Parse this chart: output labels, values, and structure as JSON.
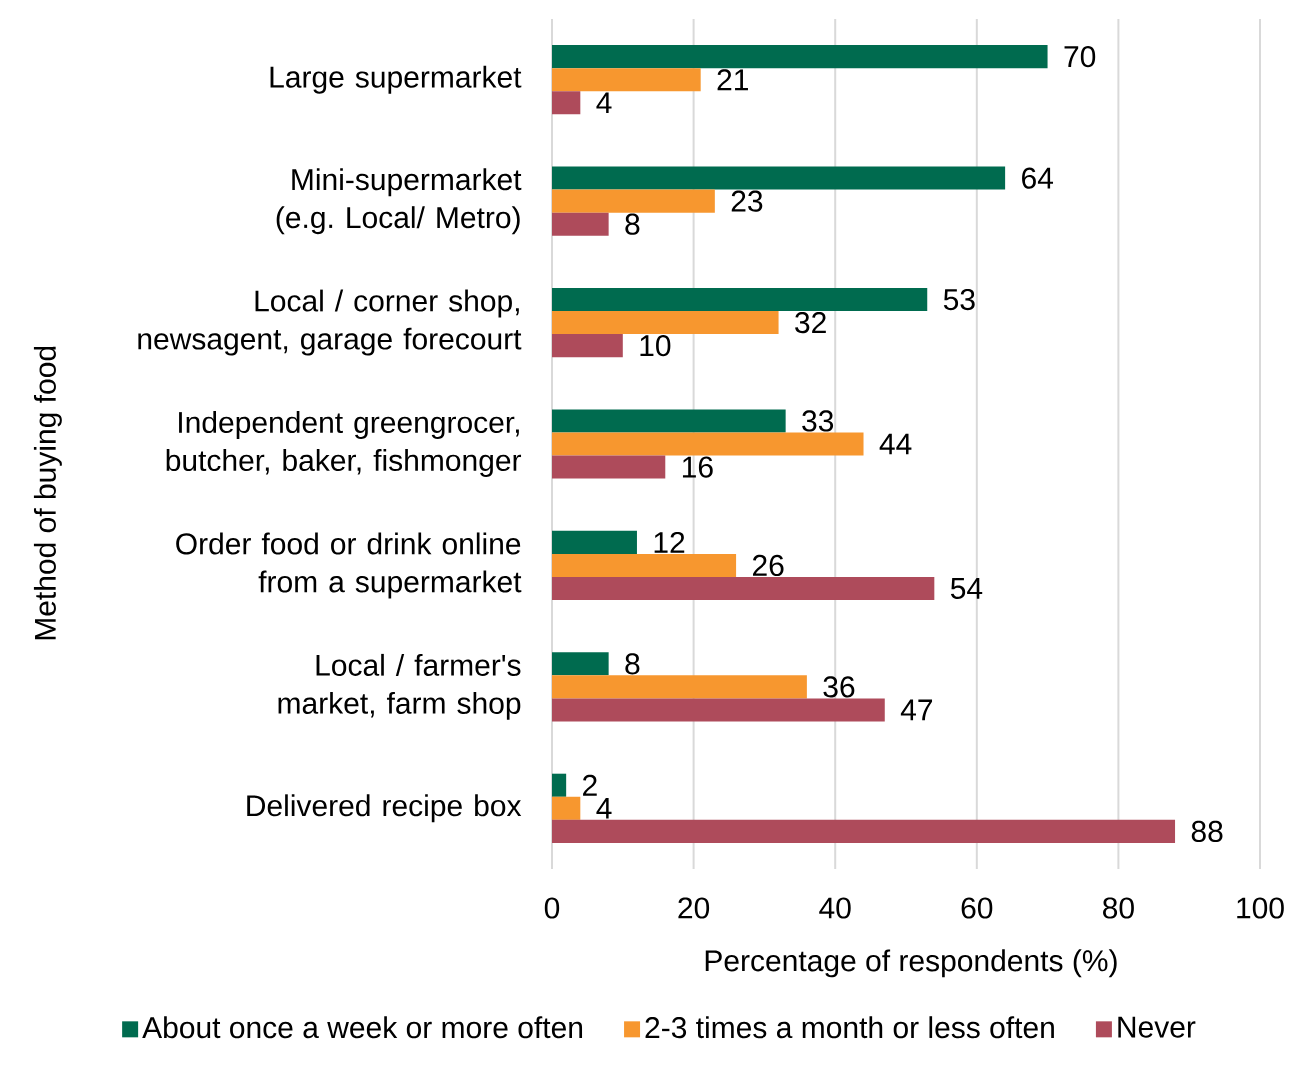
{
  "chart_data": {
    "type": "bar",
    "orientation": "horizontal",
    "xlabel": "Percentage of respondents (%)",
    "ylabel": "Method of buying food",
    "categories": [
      "Large supermarket",
      "Mini-supermarket (e.g. Local/ Metro)",
      "Local / corner shop, newsagent, garage forecourt",
      "Independent greengrocer, butcher, baker, fishmonger",
      "Order food or drink online from a supermarket",
      "Local / farmer's market, farm shop",
      "Delivered recipe box"
    ],
    "series": [
      {
        "name": "About once a week or more often",
        "color": "#006b4f",
        "values": [
          70,
          64,
          53,
          33,
          12,
          8,
          2
        ]
      },
      {
        "name": "2-3 times a month or less often",
        "color": "#f7972f",
        "values": [
          21,
          23,
          32,
          44,
          26,
          36,
          4
        ]
      },
      {
        "name": "Never",
        "color": "#ae4b5b",
        "values": [
          4,
          8,
          10,
          16,
          54,
          47,
          88
        ]
      }
    ],
    "xlim": [
      0,
      100
    ],
    "xticks": [
      0,
      20,
      40,
      60,
      80,
      100
    ],
    "grid": "x",
    "legend": "bottom",
    "data_labels": true
  }
}
